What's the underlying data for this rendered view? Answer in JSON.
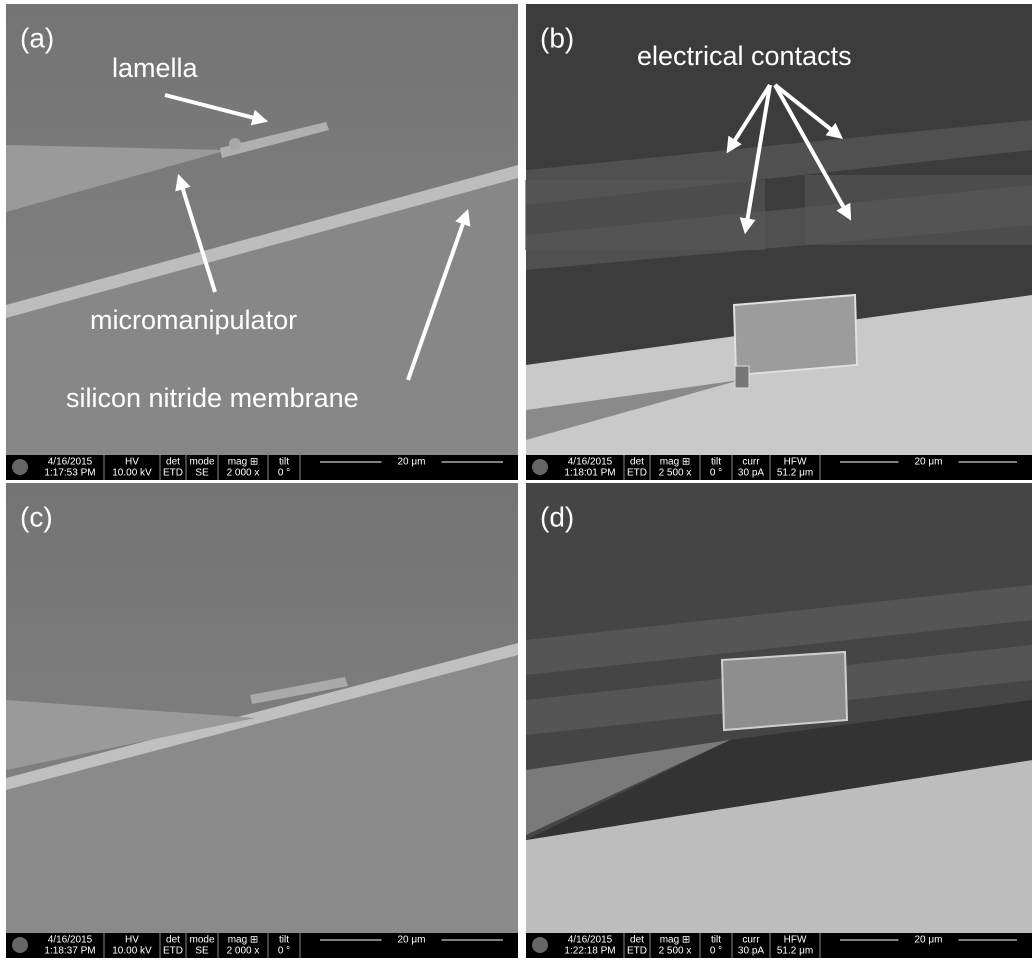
{
  "panels": [
    {
      "label": "(a)",
      "annotations": [
        "lamella",
        "micromanipulator",
        "silicon nitride membrane"
      ],
      "info_bar": {
        "fields": [
          {
            "header": "4/16/2015",
            "value": "1:17:53 PM"
          },
          {
            "header": "HV",
            "value": "10.00 kV"
          },
          {
            "header": "det",
            "value": "ETD"
          },
          {
            "header": "mode",
            "value": "SE"
          },
          {
            "header": "mag ⊞",
            "value": "2 000 x"
          },
          {
            "header": "tilt",
            "value": "0 °"
          }
        ],
        "scale_bar": "20 μm"
      }
    },
    {
      "label": "(b)",
      "annotations": [
        "electrical contacts"
      ],
      "info_bar": {
        "fields": [
          {
            "header": "4/16/2015",
            "value": "1:18:01 PM"
          },
          {
            "header": "det",
            "value": "ETD"
          },
          {
            "header": "mag ⊞",
            "value": "2 500 x"
          },
          {
            "header": "tilt",
            "value": "0 °"
          },
          {
            "header": "curr",
            "value": "30 pA"
          },
          {
            "header": "HFW",
            "value": "51.2 μm"
          }
        ],
        "scale_bar": "20 μm"
      }
    },
    {
      "label": "(c)",
      "annotations": [],
      "info_bar": {
        "fields": [
          {
            "header": "4/16/2015",
            "value": "1:18:37 PM"
          },
          {
            "header": "HV",
            "value": "10.00 kV"
          },
          {
            "header": "det",
            "value": "ETD"
          },
          {
            "header": "mode",
            "value": "SE"
          },
          {
            "header": "mag ⊞",
            "value": "2 000 x"
          },
          {
            "header": "tilt",
            "value": "0 °"
          }
        ],
        "scale_bar": "20 μm"
      }
    },
    {
      "label": "(d)",
      "annotations": [],
      "info_bar": {
        "fields": [
          {
            "header": "4/16/2015",
            "value": "1:22:18 PM"
          },
          {
            "header": "det",
            "value": "ETD"
          },
          {
            "header": "mag ⊞",
            "value": "2 500 x"
          },
          {
            "header": "tilt",
            "value": "0 °"
          },
          {
            "header": "curr",
            "value": "30 pA"
          },
          {
            "header": "HFW",
            "value": "51.2 μm"
          }
        ],
        "scale_bar": "20 μm"
      }
    }
  ]
}
